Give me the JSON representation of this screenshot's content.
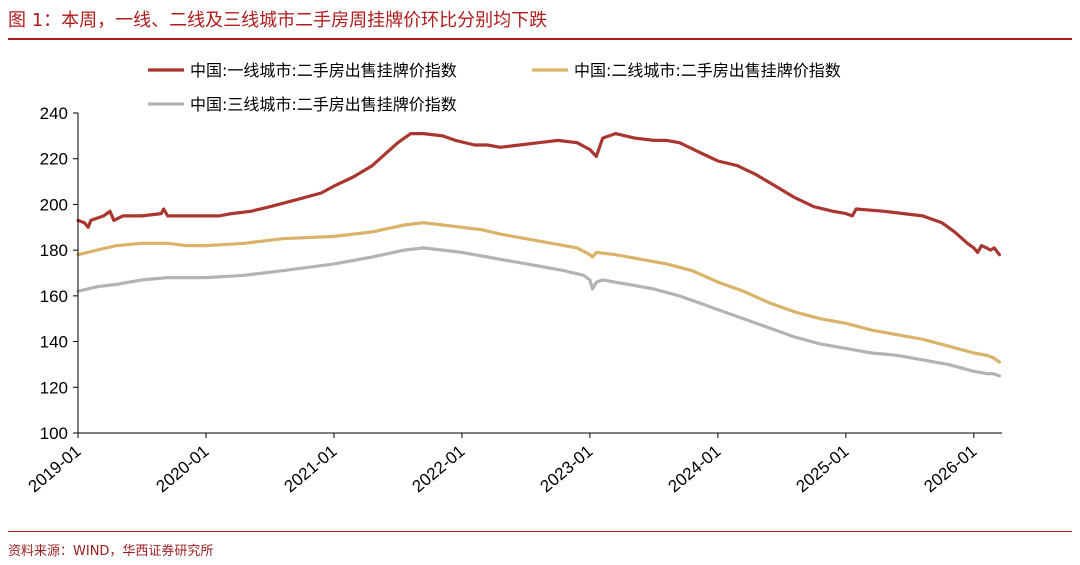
{
  "figure": {
    "title": "图 1：本周，一线、二线及三线城市二手房周挂牌价环比分别均下跌",
    "source": "资料来源：WIND，华西证券研究所"
  },
  "chart_data": {
    "type": "line",
    "title": "图 1：本周，一线、二线及三线城市二手房周挂牌价环比分别均下跌",
    "xlabel": "",
    "ylabel": "",
    "ylim": [
      100,
      240
    ],
    "yticks": [
      100,
      120,
      140,
      160,
      180,
      200,
      220,
      240
    ],
    "xlim": [
      2019.0,
      2026.22
    ],
    "xticks": [
      {
        "label": "2019-01",
        "value": 2019.0
      },
      {
        "label": "2020-01",
        "value": 2020.0
      },
      {
        "label": "2021-01",
        "value": 2021.0
      },
      {
        "label": "2022-01",
        "value": 2022.0
      },
      {
        "label": "2023-01",
        "value": 2023.0
      },
      {
        "label": "2024-01",
        "value": 2024.0
      },
      {
        "label": "2025-01",
        "value": 2025.0
      },
      {
        "label": "2026-01",
        "value": 2026.0
      }
    ],
    "grid": false,
    "legend_position": "top",
    "series": [
      {
        "name": "中国:一线城市:二手房出售挂牌价指数",
        "color": "#a9362f",
        "points": [
          [
            2019.0,
            193
          ],
          [
            2019.05,
            192
          ],
          [
            2019.08,
            190
          ],
          [
            2019.1,
            193
          ],
          [
            2019.15,
            194
          ],
          [
            2019.2,
            195
          ],
          [
            2019.25,
            197
          ],
          [
            2019.28,
            193
          ],
          [
            2019.35,
            195
          ],
          [
            2019.5,
            195
          ],
          [
            2019.65,
            196
          ],
          [
            2019.67,
            198
          ],
          [
            2019.7,
            195
          ],
          [
            2019.85,
            195
          ],
          [
            2020.0,
            195
          ],
          [
            2020.1,
            195
          ],
          [
            2020.2,
            196
          ],
          [
            2020.35,
            197
          ],
          [
            2020.5,
            199
          ],
          [
            2020.7,
            202
          ],
          [
            2020.9,
            205
          ],
          [
            2021.0,
            208
          ],
          [
            2021.15,
            212
          ],
          [
            2021.3,
            217
          ],
          [
            2021.4,
            222
          ],
          [
            2021.5,
            227
          ],
          [
            2021.6,
            231
          ],
          [
            2021.7,
            231
          ],
          [
            2021.85,
            230
          ],
          [
            2021.95,
            228
          ],
          [
            2022.1,
            226
          ],
          [
            2022.2,
            226
          ],
          [
            2022.3,
            225
          ],
          [
            2022.45,
            226
          ],
          [
            2022.6,
            227
          ],
          [
            2022.75,
            228
          ],
          [
            2022.9,
            227
          ],
          [
            2023.0,
            224
          ],
          [
            2023.05,
            221
          ],
          [
            2023.1,
            229
          ],
          [
            2023.2,
            231
          ],
          [
            2023.35,
            229
          ],
          [
            2023.5,
            228
          ],
          [
            2023.6,
            228
          ],
          [
            2023.7,
            227
          ],
          [
            2023.85,
            223
          ],
          [
            2024.0,
            219
          ],
          [
            2024.15,
            217
          ],
          [
            2024.3,
            213
          ],
          [
            2024.45,
            208
          ],
          [
            2024.6,
            203
          ],
          [
            2024.75,
            199
          ],
          [
            2024.9,
            197
          ],
          [
            2025.0,
            196
          ],
          [
            2025.05,
            195
          ],
          [
            2025.08,
            198
          ],
          [
            2025.3,
            197
          ],
          [
            2025.45,
            196
          ],
          [
            2025.6,
            195
          ],
          [
            2025.75,
            192
          ],
          [
            2025.85,
            188
          ],
          [
            2025.95,
            183
          ],
          [
            2026.0,
            181
          ],
          [
            2026.03,
            179
          ],
          [
            2026.06,
            182
          ],
          [
            2026.1,
            181
          ],
          [
            2026.13,
            180
          ],
          [
            2026.16,
            181
          ],
          [
            2026.2,
            178
          ]
        ]
      },
      {
        "name": "中国:二线城市:二手房出售挂牌价指数",
        "color": "#d9b36a",
        "points": [
          [
            2019.0,
            178
          ],
          [
            2019.15,
            180
          ],
          [
            2019.3,
            182
          ],
          [
            2019.5,
            183
          ],
          [
            2019.7,
            183
          ],
          [
            2019.85,
            182
          ],
          [
            2020.0,
            182
          ],
          [
            2020.3,
            183
          ],
          [
            2020.6,
            185
          ],
          [
            2021.0,
            186
          ],
          [
            2021.3,
            188
          ],
          [
            2021.55,
            191
          ],
          [
            2021.7,
            192
          ],
          [
            2021.85,
            191
          ],
          [
            2022.0,
            190
          ],
          [
            2022.15,
            189
          ],
          [
            2022.3,
            187
          ],
          [
            2022.5,
            185
          ],
          [
            2022.7,
            183
          ],
          [
            2022.9,
            181
          ],
          [
            2023.0,
            178
          ],
          [
            2023.02,
            177
          ],
          [
            2023.05,
            179
          ],
          [
            2023.2,
            178
          ],
          [
            2023.4,
            176
          ],
          [
            2023.6,
            174
          ],
          [
            2023.8,
            171
          ],
          [
            2024.0,
            166
          ],
          [
            2024.2,
            162
          ],
          [
            2024.4,
            157
          ],
          [
            2024.6,
            153
          ],
          [
            2024.8,
            150
          ],
          [
            2025.0,
            148
          ],
          [
            2025.2,
            145
          ],
          [
            2025.4,
            143
          ],
          [
            2025.6,
            141
          ],
          [
            2025.8,
            138
          ],
          [
            2026.0,
            135
          ],
          [
            2026.1,
            134
          ],
          [
            2026.15,
            133
          ],
          [
            2026.2,
            131
          ]
        ]
      },
      {
        "name": "中国:三线城市:二手房出售挂牌价指数",
        "color": "#b3b3b3",
        "points": [
          [
            2019.0,
            162
          ],
          [
            2019.15,
            164
          ],
          [
            2019.3,
            165
          ],
          [
            2019.5,
            167
          ],
          [
            2019.7,
            168
          ],
          [
            2020.0,
            168
          ],
          [
            2020.3,
            169
          ],
          [
            2020.6,
            171
          ],
          [
            2021.0,
            174
          ],
          [
            2021.3,
            177
          ],
          [
            2021.55,
            180
          ],
          [
            2021.7,
            181
          ],
          [
            2021.85,
            180
          ],
          [
            2022.0,
            179
          ],
          [
            2022.2,
            177
          ],
          [
            2022.4,
            175
          ],
          [
            2022.6,
            173
          ],
          [
            2022.8,
            171
          ],
          [
            2022.95,
            169
          ],
          [
            2023.0,
            167
          ],
          [
            2023.02,
            163
          ],
          [
            2023.05,
            166
          ],
          [
            2023.1,
            167
          ],
          [
            2023.3,
            165
          ],
          [
            2023.5,
            163
          ],
          [
            2023.7,
            160
          ],
          [
            2023.9,
            156
          ],
          [
            2024.0,
            154
          ],
          [
            2024.2,
            150
          ],
          [
            2024.4,
            146
          ],
          [
            2024.6,
            142
          ],
          [
            2024.8,
            139
          ],
          [
            2025.0,
            137
          ],
          [
            2025.2,
            135
          ],
          [
            2025.4,
            134
          ],
          [
            2025.6,
            132
          ],
          [
            2025.8,
            130
          ],
          [
            2026.0,
            127
          ],
          [
            2026.1,
            126
          ],
          [
            2026.15,
            126
          ],
          [
            2026.2,
            125
          ]
        ]
      }
    ]
  }
}
